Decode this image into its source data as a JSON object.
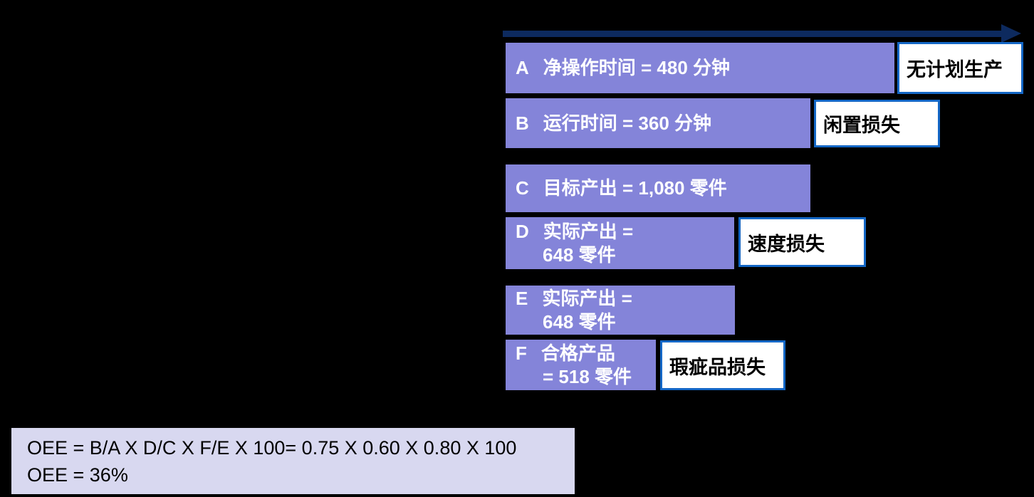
{
  "colors": {
    "background": "#000000",
    "bar_fill": "#8484d9",
    "bar_text": "#ffffff",
    "arrow": "#0d2a5e",
    "loss_box_bg": "#ffffff",
    "loss_box_border": "#1467c6",
    "loss_box_text": "#000000",
    "formula_bg": "#d8d8f0",
    "formula_text": "#000000"
  },
  "bars": [
    {
      "letter": "A",
      "line1": "净操作时间 = 480 分钟",
      "line2": ""
    },
    {
      "letter": "B",
      "line1": "运行时间 = 360 分钟",
      "line2": ""
    },
    {
      "letter": "C",
      "line1": "目标产出 = 1,080 零件",
      "line2": ""
    },
    {
      "letter": "D",
      "line1": "实际产出 =",
      "line2": "648 零件"
    },
    {
      "letter": "E",
      "line1": "实际产出 =",
      "line2": "648 零件"
    },
    {
      "letter": "F",
      "line1": "合格产品",
      "line2": "= 518 零件"
    }
  ],
  "loss_boxes": [
    {
      "label": "无计划生产"
    },
    {
      "label": "闲置损失"
    },
    {
      "label": "速度损失"
    },
    {
      "label": "瑕疵品损失"
    }
  ],
  "formula": {
    "line1": "OEE = B/A X D/C X F/E X 100= 0.75 X 0.60 X 0.80 X 100",
    "line2": "OEE = 36%"
  },
  "chart_data": {
    "type": "bar",
    "orientation": "horizontal",
    "bars": [
      {
        "id": "A",
        "label": "净操作时间",
        "value": 480,
        "unit": "分钟"
      },
      {
        "id": "B",
        "label": "运行时间",
        "value": 360,
        "unit": "分钟"
      },
      {
        "id": "C",
        "label": "目标产出",
        "value": 1080,
        "unit": "零件"
      },
      {
        "id": "D",
        "label": "实际产出",
        "value": 648,
        "unit": "零件"
      },
      {
        "id": "E",
        "label": "实际产出",
        "value": 648,
        "unit": "零件"
      },
      {
        "id": "F",
        "label": "合格产品",
        "value": 518,
        "unit": "零件"
      }
    ],
    "losses": [
      {
        "adjacent_bar": "A",
        "label": "无计划生产"
      },
      {
        "adjacent_bar": "B",
        "label": "闲置损失"
      },
      {
        "adjacent_bar": "D",
        "label": "速度损失"
      },
      {
        "adjacent_bar": "F",
        "label": "瑕疵品损失"
      }
    ],
    "oee_calculation": {
      "availability": 0.75,
      "performance": 0.6,
      "quality": 0.8,
      "oee_percent": 36
    }
  }
}
